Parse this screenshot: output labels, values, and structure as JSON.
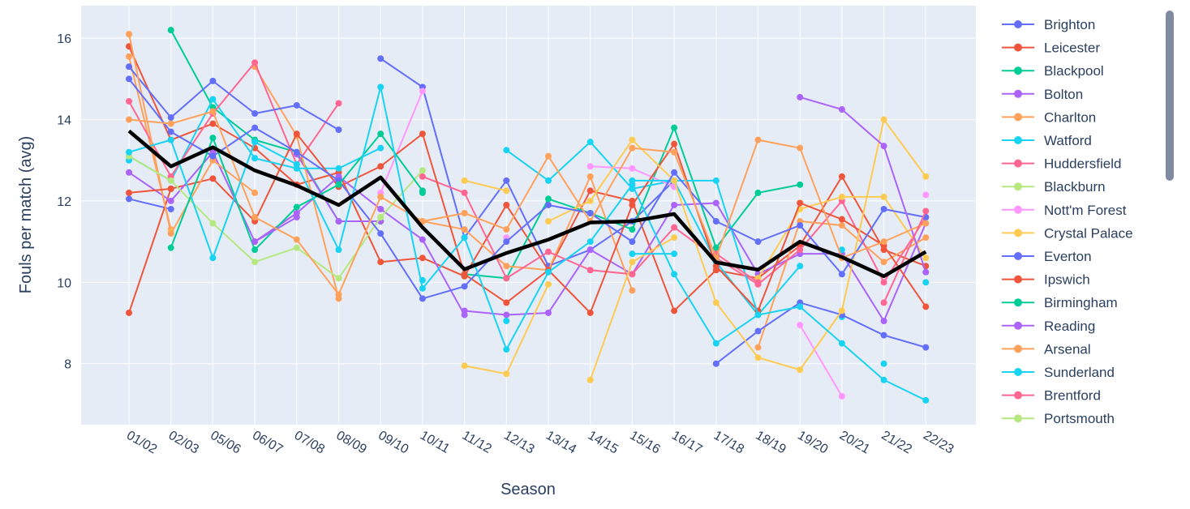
{
  "chart_data": {
    "type": "line",
    "xlabel": "Season",
    "ylabel": "Fouls per match (avg)",
    "categories": [
      "01/02",
      "02/03",
      "05/06",
      "06/07",
      "07/08",
      "08/09",
      "09/10",
      "10/11",
      "11/12",
      "12/13",
      "13/14",
      "14/15",
      "15/16",
      "16/17",
      "17/18",
      "18/19",
      "19/20",
      "20/21",
      "21/22",
      "22/23"
    ],
    "yticks": [
      8,
      10,
      12,
      14,
      16
    ],
    "ylim": [
      6.5,
      16.8
    ],
    "grid": true,
    "plot_bg": "#e5ecf6",
    "legend_position": "right",
    "average_line": {
      "color": "#000000",
      "values": [
        13.72,
        12.85,
        13.32,
        12.75,
        12.38,
        11.9,
        12.58,
        11.35,
        10.32,
        10.72,
        11.05,
        11.47,
        11.5,
        11.68,
        10.49,
        10.31,
        11.0,
        10.62,
        10.15,
        10.75
      ]
    },
    "series": [
      {
        "name": "Brighton",
        "color": "#636efa",
        "values": [
          null,
          null,
          null,
          null,
          null,
          null,
          null,
          null,
          null,
          null,
          null,
          null,
          null,
          null,
          8.0,
          8.8,
          9.5,
          9.2,
          8.7,
          8.4
        ]
      },
      {
        "name": "Leicester",
        "color": "#ef553b",
        "values": [
          9.25,
          12.3,
          12.55,
          11.5,
          13.65,
          12.35,
          12.85,
          13.65,
          10.2,
          9.5,
          10.3,
          9.25,
          11.9,
          13.4,
          10.4,
          9.3,
          11.95,
          11.55,
          10.9,
          9.4
        ]
      },
      {
        "name": "Blackpool",
        "color": "#00cc96",
        "values": [
          null,
          null,
          null,
          null,
          null,
          null,
          null,
          12.2,
          null,
          null,
          null,
          null,
          null,
          null,
          null,
          null,
          null,
          null,
          null,
          null
        ]
      },
      {
        "name": "Bolton",
        "color": "#ab63fa",
        "values": [
          12.7,
          12.0,
          13.2,
          11.0,
          11.7,
          12.6,
          11.8,
          11.05,
          9.2,
          null,
          null,
          null,
          null,
          null,
          null,
          null,
          null,
          null,
          null,
          null
        ]
      },
      {
        "name": "Charlton",
        "color": "#ffa15a",
        "values": [
          16.1,
          11.2,
          13.0,
          12.2,
          null,
          null,
          null,
          null,
          null,
          null,
          null,
          null,
          null,
          null,
          null,
          null,
          null,
          null,
          null,
          null
        ]
      },
      {
        "name": "Watford",
        "color": "#19d3f3",
        "values": [
          null,
          null,
          null,
          13.05,
          null,
          null,
          null,
          null,
          null,
          null,
          null,
          null,
          12.5,
          12.5,
          12.5,
          9.2,
          null,
          10.8,
          null,
          10.0
        ]
      },
      {
        "name": "Huddersfield",
        "color": "#ff6692",
        "values": [
          null,
          null,
          null,
          null,
          null,
          null,
          null,
          null,
          null,
          null,
          null,
          null,
          null,
          null,
          10.7,
          10.0,
          null,
          null,
          null,
          null
        ]
      },
      {
        "name": "Blackburn",
        "color": "#b6e880",
        "values": [
          13.1,
          12.5,
          11.45,
          10.5,
          10.85,
          10.1,
          11.6,
          12.75,
          null,
          null,
          null,
          null,
          null,
          null,
          null,
          null,
          null,
          null,
          null,
          null
        ]
      },
      {
        "name": "Nott'm Forest",
        "color": "#ff97ff",
        "values": [
          null,
          null,
          null,
          null,
          null,
          null,
          null,
          null,
          null,
          null,
          null,
          null,
          null,
          null,
          null,
          null,
          null,
          null,
          null,
          12.15
        ]
      },
      {
        "name": "Crystal Palace",
        "color": "#fecb52",
        "values": [
          null,
          null,
          null,
          null,
          null,
          null,
          null,
          null,
          null,
          null,
          11.5,
          12.0,
          13.5,
          12.5,
          9.5,
          8.15,
          7.85,
          9.3,
          14.0,
          12.6
        ]
      },
      {
        "name": "Everton",
        "color": "#636efa",
        "values": [
          15.0,
          13.7,
          13.1,
          13.8,
          13.2,
          12.5,
          11.2,
          9.6,
          9.9,
          11.0,
          11.9,
          11.7,
          11.0,
          12.7,
          11.5,
          11.0,
          11.4,
          10.2,
          11.8,
          11.6
        ]
      },
      {
        "name": "Ipswich",
        "color": "#ef553b",
        "values": [
          12.2,
          12.3,
          null,
          null,
          null,
          null,
          null,
          null,
          null,
          null,
          null,
          null,
          null,
          null,
          null,
          null,
          null,
          null,
          null,
          null
        ]
      },
      {
        "name": "Birmingham",
        "color": "#00cc96",
        "values": [
          null,
          10.85,
          13.55,
          10.8,
          11.85,
          12.4,
          13.65,
          12.25,
          null,
          null,
          null,
          null,
          null,
          null,
          null,
          null,
          null,
          null,
          null,
          null
        ]
      },
      {
        "name": "Reading",
        "color": "#ab63fa",
        "values": [
          null,
          null,
          null,
          11.0,
          11.6,
          null,
          null,
          null,
          null,
          null,
          null,
          null,
          null,
          null,
          null,
          null,
          14.55,
          14.25,
          13.35,
          10.25
        ]
      },
      {
        "name": "Arsenal",
        "color": "#ffa15a",
        "values": [
          14.0,
          13.9,
          14.2,
          11.6,
          11.05,
          9.7,
          12.1,
          11.5,
          11.7,
          11.3,
          13.1,
          11.5,
          13.3,
          13.2,
          10.6,
          13.5,
          13.3,
          10.6,
          11.0,
          11.45
        ]
      },
      {
        "name": "Sunderland",
        "color": "#19d3f3",
        "values": [
          13.2,
          13.5,
          10.6,
          13.45,
          12.9,
          10.8,
          14.8,
          9.85,
          11.1,
          8.35,
          10.25,
          11.0,
          12.4,
          10.2,
          8.5,
          9.2,
          9.4,
          8.5,
          7.6,
          7.1
        ]
      },
      {
        "name": "Brentford",
        "color": "#ff6692",
        "values": [
          null,
          null,
          null,
          null,
          null,
          null,
          null,
          null,
          null,
          null,
          null,
          null,
          null,
          null,
          null,
          null,
          null,
          null,
          9.5,
          11.75
        ]
      },
      {
        "name": "Portsmouth",
        "color": "#b6e880",
        "values": [
          null,
          null,
          null,
          null,
          null,
          null,
          11.6,
          null,
          null,
          null,
          null,
          null,
          null,
          null,
          null,
          null,
          null,
          null,
          null,
          null
        ]
      }
    ],
    "extra_series": [
      {
        "color": "#636efa",
        "values": [
          12.05,
          11.8,
          null,
          null,
          null,
          null,
          15.5,
          14.8,
          11.1,
          12.5,
          10.4,
          10.8,
          11.5,
          12.5,
          null,
          null,
          null,
          null,
          null,
          null
        ]
      },
      {
        "color": "#ef553b",
        "values": [
          15.8,
          13.5,
          13.9,
          13.3,
          12.4,
          12.7,
          10.5,
          10.6,
          10.15,
          11.9,
          10.3,
          12.25,
          12.0,
          9.3,
          10.3,
          10.1,
          10.9,
          12.6,
          10.8,
          10.4
        ]
      },
      {
        "color": "#00cc96",
        "values": [
          null,
          16.2,
          14.3,
          13.5,
          13.2,
          11.5,
          11.5,
          null,
          10.2,
          10.1,
          12.05,
          11.7,
          11.3,
          13.8,
          10.85,
          12.2,
          12.4,
          null,
          null,
          null
        ]
      },
      {
        "color": "#ab63fa",
        "values": [
          null,
          null,
          null,
          null,
          13.15,
          11.5,
          11.5,
          null,
          9.3,
          9.2,
          9.25,
          10.8,
          10.2,
          11.9,
          11.95,
          10.2,
          10.7,
          10.7,
          9.05,
          11.45
        ]
      },
      {
        "color": "#ffa15a",
        "values": [
          15.55,
          11.3,
          null,
          15.3,
          13.6,
          9.6,
          null,
          11.5,
          11.3,
          10.4,
          10.3,
          12.6,
          9.8,
          null,
          null,
          8.4,
          11.5,
          11.4,
          10.5,
          11.1
        ]
      },
      {
        "color": "#19d3f3",
        "values": [
          13.1,
          12.5,
          14.5,
          13.05,
          12.8,
          12.8,
          13.3,
          null,
          null,
          13.25,
          12.5,
          13.45,
          12.3,
          12.5,
          10.5,
          9.2,
          10.4,
          null,
          8.0,
          null
        ]
      },
      {
        "color": "#ff6692",
        "values": [
          14.45,
          12.6,
          14.15,
          15.4,
          12.9,
          14.4,
          null,
          12.6,
          12.2,
          10.1,
          10.75,
          10.3,
          10.2,
          11.35,
          10.6,
          9.95,
          10.8,
          12.0,
          10.0,
          11.6
        ]
      },
      {
        "color": "#ff97ff",
        "values": [
          null,
          null,
          null,
          null,
          null,
          null,
          12.2,
          14.7,
          null,
          11.1,
          null,
          12.85,
          12.8,
          12.35,
          null,
          null,
          8.95,
          7.2,
          null,
          null
        ]
      },
      {
        "color": "#fecb52",
        "values": [
          null,
          11.25,
          null,
          null,
          null,
          null,
          null,
          null,
          12.5,
          12.25,
          null,
          7.6,
          10.5,
          11.1,
          null,
          10.1,
          11.8,
          12.1,
          12.1,
          10.6
        ]
      },
      {
        "color": "#636efa",
        "values": [
          15.3,
          14.05,
          14.95,
          14.15,
          14.35,
          13.75,
          null,
          null,
          null,
          null,
          null,
          null,
          null,
          null,
          null,
          null,
          null,
          null,
          null,
          null
        ]
      },
      {
        "color": "#fecb52",
        "values": [
          null,
          null,
          null,
          null,
          null,
          null,
          null,
          null,
          7.95,
          7.75,
          9.95,
          null,
          null,
          null,
          null,
          null,
          null,
          null,
          null,
          null
        ]
      },
      {
        "color": "#19d3f3",
        "values": [
          13.0,
          null,
          null,
          null,
          null,
          null,
          null,
          10.05,
          null,
          9.05,
          null,
          null,
          10.7,
          10.7,
          null,
          null,
          null,
          9.15,
          null,
          null
        ]
      }
    ]
  }
}
